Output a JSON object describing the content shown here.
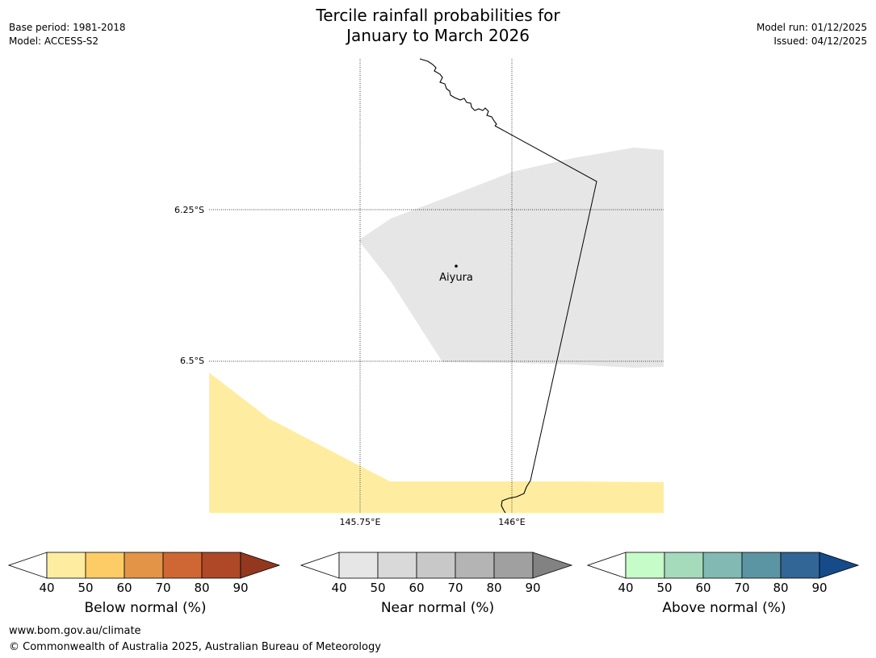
{
  "header": {
    "title_line1": "Tercile rainfall probabilities for",
    "title_line2": "January to March 2026",
    "base_period": "Base period: 1981-2018",
    "model": "Model: ACCESS-S2",
    "model_run": "Model run: 01/12/2025",
    "issued": "Issued: 04/12/2025"
  },
  "map": {
    "lat_labels": [
      "6.25°S",
      "6.5°S"
    ],
    "lon_labels": [
      "145.75°E",
      "146°E"
    ],
    "place": {
      "name": "Aiyura"
    },
    "region_colors": {
      "near_normal": "#e6e6e6",
      "below_normal": "#feeda1"
    }
  },
  "legends": [
    {
      "title": "Below normal (%)",
      "ticks": [
        "40",
        "50",
        "60",
        "70",
        "80",
        "90"
      ],
      "colors": [
        "#feeda1",
        "#fecc66",
        "#e39446",
        "#cf6734",
        "#ae4826"
      ],
      "extend_color": "#93381e"
    },
    {
      "title": "Near normal (%)",
      "ticks": [
        "40",
        "50",
        "60",
        "70",
        "80",
        "90"
      ],
      "colors": [
        "#e6e6e6",
        "#d9d9d9",
        "#c8c8c8",
        "#b4b4b4",
        "#a0a0a0"
      ],
      "extend_color": "#828282"
    },
    {
      "title": "Above normal (%)",
      "ticks": [
        "40",
        "50",
        "60",
        "70",
        "80",
        "90"
      ],
      "colors": [
        "#c6fcc8",
        "#a5dabb",
        "#82b9b2",
        "#5b95a3",
        "#316696"
      ],
      "extend_color": "#164b8a"
    }
  ],
  "footer": {
    "website": "www.bom.gov.au/climate",
    "copyright": "© Commonwealth of Australia 2025, Australian Bureau of Meteorology"
  }
}
